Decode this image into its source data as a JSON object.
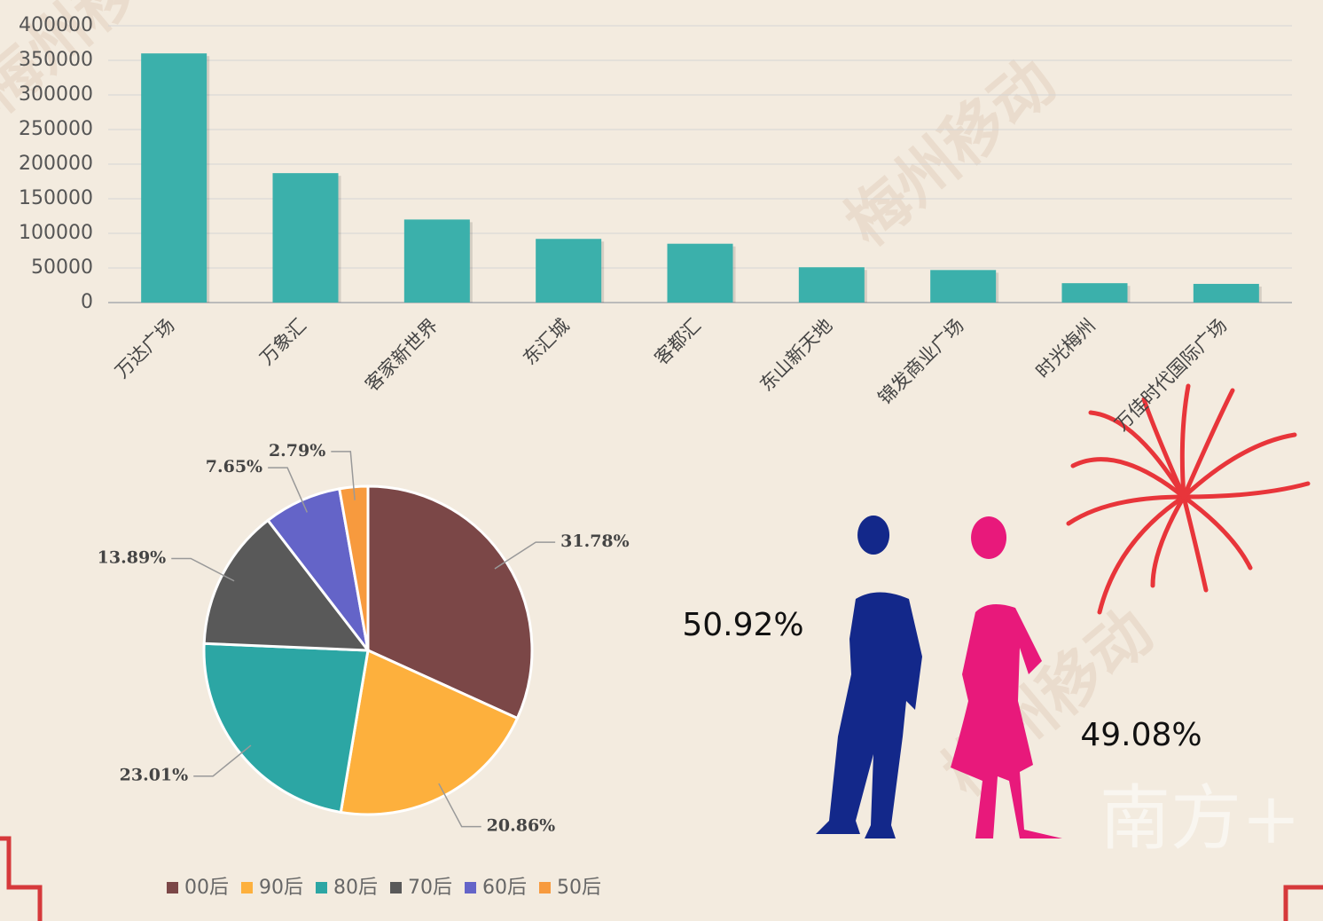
{
  "watermark": "梅州移动",
  "logo": "南方+",
  "chart_data": [
    {
      "type": "bar",
      "categories": [
        "万达广场",
        "万象汇",
        "客家新世界",
        "东汇城",
        "客都汇",
        "东山新天地",
        "锦发商业广场",
        "时光梅州",
        "万佳时代国际广场"
      ],
      "values": [
        360000,
        187000,
        120000,
        92000,
        85000,
        51000,
        47000,
        28000,
        27000
      ],
      "color": "#3bb0ab",
      "ylim": [
        0,
        400000
      ],
      "yticks": [
        0,
        50000,
        100000,
        150000,
        200000,
        250000,
        300000,
        350000,
        400000
      ],
      "grid": true
    },
    {
      "type": "pie",
      "categories": [
        "00后",
        "90后",
        "80后",
        "70后",
        "60后",
        "50后"
      ],
      "values": [
        31.78,
        20.86,
        23.01,
        13.89,
        7.65,
        2.79
      ],
      "value_labels": [
        "31.78%",
        "20.86%",
        "23.01%",
        "13.89%",
        "7.65%",
        "2.79%"
      ],
      "colors": [
        "#7b4747",
        "#fdb03d",
        "#2ca6a4",
        "#595959",
        "#6464c8",
        "#f79a3e"
      ],
      "legend": "bottom"
    },
    {
      "type": "pictogram",
      "values": [
        50.92,
        49.08
      ],
      "value_labels": [
        "50.92%",
        "49.08%"
      ],
      "colors": [
        "#13288a",
        "#e8197b"
      ]
    }
  ]
}
